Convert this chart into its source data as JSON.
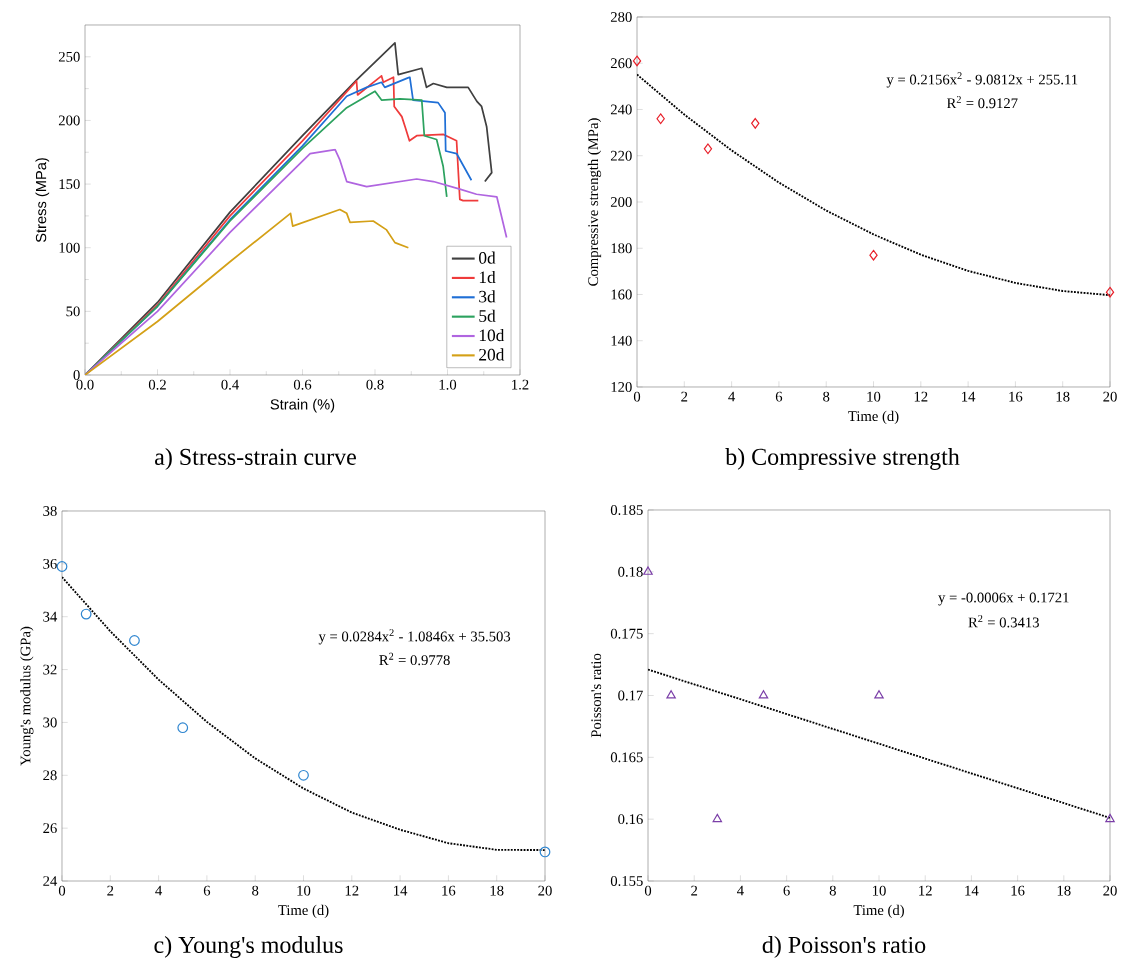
{
  "chart_data": [
    {
      "type": "line",
      "title": "a)  Stress-strain curve",
      "xlabel": "Strain (%)",
      "ylabel": "Stress (MPa)",
      "xlim": [
        0,
        1.2
      ],
      "ylim": [
        0,
        275
      ],
      "xticks": [
        {
          "value": 0,
          "label": "0.0"
        },
        {
          "value": 0.2,
          "label": "0.2"
        },
        {
          "value": 0.4,
          "label": "0.4"
        },
        {
          "value": 0.6,
          "label": "0.6"
        },
        {
          "value": 0.8,
          "label": "0.8"
        },
        {
          "value": 1.0,
          "label": "1.0"
        },
        {
          "value": 1.2,
          "label": "1.2"
        }
      ],
      "yticks": [
        0,
        50,
        100,
        150,
        200,
        250
      ],
      "legend": "bottom right",
      "series": [
        {
          "name": "0d",
          "color": "#404040",
          "x": [
            0,
            0.2,
            0.4,
            0.6,
            0.75,
            0.855,
            0.864,
            0.929,
            0.942,
            0.961,
            0.998,
            1.057,
            1.081,
            1.094,
            1.108,
            1.122,
            1.103
          ],
          "values": [
            0,
            57,
            128,
            188,
            232,
            261,
            236,
            241,
            226,
            229,
            226,
            226,
            215,
            211,
            195,
            159,
            152
          ]
        },
        {
          "name": "1d",
          "color": "#ef3b3b",
          "x": [
            0,
            0.2,
            0.4,
            0.6,
            0.749,
            0.752,
            0.818,
            0.823,
            0.851,
            0.853,
            0.874,
            0.883,
            0.895,
            0.915,
            0.989,
            1.025,
            1.034,
            1.043,
            1.085
          ],
          "values": [
            0,
            55,
            125,
            184,
            231,
            220,
            235,
            230,
            234,
            211,
            203,
            195,
            184,
            188,
            189,
            184,
            138,
            137,
            137
          ]
        },
        {
          "name": "3d",
          "color": "#1f6fd6",
          "x": [
            0,
            0.2,
            0.4,
            0.6,
            0.722,
            0.777,
            0.818,
            0.827,
            0.896,
            0.905,
            0.974,
            0.993,
            0.995,
            1.025,
            1.066
          ],
          "values": [
            0,
            54,
            122,
            180,
            219,
            226,
            230,
            226,
            234,
            216,
            214,
            206,
            176,
            174,
            153
          ]
        },
        {
          "name": "5d",
          "color": "#2ca25f",
          "x": [
            0,
            0.2,
            0.4,
            0.6,
            0.722,
            0.8,
            0.818,
            0.869,
            0.929,
            0.936,
            0.97,
            0.988,
            0.998
          ],
          "values": [
            0,
            54,
            121,
            178,
            210,
            223,
            216,
            217,
            216,
            188,
            185,
            164,
            140
          ]
        },
        {
          "name": "10d",
          "color": "#b065e0",
          "x": [
            0,
            0.2,
            0.4,
            0.621,
            0.69,
            0.703,
            0.722,
            0.777,
            0.915,
            0.961,
            1.034,
            1.08,
            1.136,
            1.163
          ],
          "values": [
            0,
            50,
            112,
            174,
            177,
            169,
            152,
            148,
            154,
            152,
            146,
            142,
            140,
            108
          ]
        },
        {
          "name": "20d",
          "color": "#d4a017",
          "x": [
            0,
            0.2,
            0.4,
            0.567,
            0.573,
            0.703,
            0.722,
            0.731,
            0.795,
            0.832,
            0.855,
            0.892
          ],
          "values": [
            0,
            42,
            89,
            127,
            117,
            130,
            127,
            120,
            121,
            114,
            104,
            100
          ]
        }
      ]
    },
    {
      "type": "scatter",
      "title": "b)  Compressive strength",
      "xlabel": "Time (d)",
      "ylabel": "Compressive strength (MPa)",
      "xlim": [
        0,
        20
      ],
      "ylim": [
        120,
        280
      ],
      "xticks": [
        0,
        2,
        4,
        6,
        8,
        10,
        12,
        14,
        16,
        18,
        20
      ],
      "yticks": [
        120,
        140,
        160,
        180,
        200,
        220,
        240,
        260,
        280
      ],
      "annotations": [
        "y = 0.2156x$^{2}$ - 9.0812x + 255.11",
        "R$^{2}$ = 0.9127"
      ],
      "series": [
        {
          "type": "scatter",
          "marker": "diamond",
          "color": "#e8202a",
          "x": [
            0,
            1,
            3,
            5,
            10,
            20
          ],
          "values": [
            261,
            236,
            223,
            234,
            177,
            161
          ]
        },
        {
          "type": "line",
          "marker": "none",
          "line_style": "dotted",
          "color": "#000000",
          "x": [
            0,
            2,
            4,
            6,
            8,
            10,
            12,
            14,
            16,
            18,
            20
          ],
          "values": [
            255.1,
            237.8,
            222.3,
            208.4,
            196.3,
            186.0,
            177.2,
            170.2,
            165.0,
            161.5,
            159.7
          ]
        }
      ]
    },
    {
      "type": "scatter",
      "title": "c)  Young's modulus",
      "xlabel": "Time (d)",
      "ylabel": "Young's modulus (GPa)",
      "xlim": [
        0,
        20
      ],
      "ylim": [
        24,
        38
      ],
      "xticks": [
        0,
        2,
        4,
        6,
        8,
        10,
        12,
        14,
        16,
        18,
        20
      ],
      "yticks": [
        24,
        26,
        28,
        30,
        32,
        34,
        36,
        38
      ],
      "annotations": [
        "y = 0.0284x$^{2}$ - 1.0846x + 35.503",
        "R$^{2}$ = 0.9778"
      ],
      "series": [
        {
          "type": "scatter",
          "marker": "circle",
          "color": "#2f86d0",
          "x": [
            0,
            1,
            3,
            5,
            10,
            20
          ],
          "values": [
            35.9,
            34.1,
            33.1,
            29.8,
            28.0,
            25.1
          ]
        },
        {
          "type": "line",
          "marker": "none",
          "line_style": "dotted",
          "color": "#000000",
          "x": [
            0,
            2,
            4,
            6,
            8,
            10,
            12,
            14,
            16,
            18,
            20
          ],
          "values": [
            35.5,
            33.45,
            31.62,
            30.02,
            28.64,
            27.5,
            26.59,
            25.94,
            25.43,
            25.18,
            25.17
          ]
        }
      ]
    },
    {
      "type": "scatter",
      "title": "d)  Poisson's ratio",
      "xlabel": "Time (d)",
      "ylabel": "Poisson's ratio",
      "xlim": [
        0,
        20
      ],
      "ylim": [
        0.155,
        0.185
      ],
      "xticks": [
        0,
        2,
        4,
        6,
        8,
        10,
        12,
        14,
        16,
        18,
        20
      ],
      "yticks": [
        0.155,
        0.16,
        0.165,
        0.17,
        0.175,
        0.18,
        0.185
      ],
      "annotations": [
        "y = -0.0006x + 0.1721",
        "R$^{2}$ = 0.3413"
      ],
      "series": [
        {
          "type": "scatter",
          "marker": "triangle",
          "color": "#7b3fa8",
          "x": [
            0,
            1,
            3,
            5,
            10,
            20
          ],
          "values": [
            0.18,
            0.17,
            0.16,
            0.17,
            0.17,
            0.16
          ]
        },
        {
          "type": "line",
          "marker": "none",
          "line_style": "dotted",
          "color": "#000000",
          "x": [
            0,
            20
          ],
          "values": [
            0.1721,
            0.1601
          ]
        }
      ]
    }
  ]
}
